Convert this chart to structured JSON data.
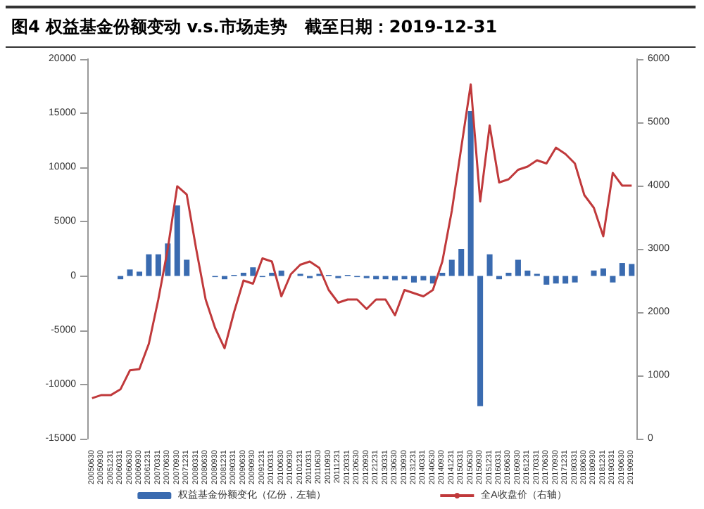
{
  "chart_data": {
    "type": "bar",
    "title": "图4 权益基金份额变动 v.s.市场走势   截至日期：2019-12-31",
    "categories": [
      "20050630",
      "20050930",
      "20051231",
      "20060331",
      "20060630",
      "20060930",
      "20061231",
      "20070331",
      "20070630",
      "20070930",
      "20071231",
      "20080331",
      "20080630",
      "20080930",
      "20081231",
      "20090331",
      "20090630",
      "20090930",
      "20091231",
      "20100331",
      "20100630",
      "20100930",
      "20101231",
      "20110331",
      "20110630",
      "20110930",
      "20111231",
      "20120331",
      "20120630",
      "20120930",
      "20121231",
      "20130331",
      "20130630",
      "20130930",
      "20131231",
      "20140331",
      "20140630",
      "20140930",
      "20141231",
      "20150331",
      "20150630",
      "20150930",
      "20151231",
      "20160331",
      "20160630",
      "20160930",
      "20161231",
      "20170331",
      "20170630",
      "20170930",
      "20171231",
      "20180331",
      "20180630",
      "20180930",
      "20181231",
      "20190331",
      "20190630",
      "20190930"
    ],
    "series": [
      {
        "name": "权益基金份额变化（亿份，左轴）",
        "color": "#3a6bb0",
        "values": [
          0,
          0,
          0,
          -300,
          600,
          400,
          2000,
          2000,
          3000,
          6500,
          1500,
          0,
          0,
          -100,
          -300,
          100,
          300,
          800,
          -100,
          300,
          500,
          null,
          200,
          -200,
          200,
          100,
          -200,
          100,
          -100,
          -200,
          -300,
          -300,
          -400,
          -300,
          -600,
          -400,
          -700,
          300,
          1500,
          2500,
          15200,
          -12000,
          2000,
          -300,
          300,
          1500,
          500,
          200,
          -800,
          -700,
          -700,
          -600,
          0,
          500,
          700,
          -600,
          1200,
          1100
        ]
      },
      {
        "name": "全A收盘价（右轴）",
        "type": "line",
        "axis": "y2",
        "color": "#c0393b",
        "values": [
          640,
          690,
          690,
          780,
          1080,
          1100,
          1500,
          2200,
          3000,
          3990,
          3860,
          3000,
          2200,
          1750,
          1430,
          2000,
          2500,
          2450,
          2850,
          2800,
          2250,
          2600,
          2750,
          2800,
          2700,
          2350,
          2150,
          2200,
          2200,
          2050,
          2200,
          2200,
          1950,
          2350,
          2300,
          2250,
          2350,
          2800,
          3600,
          4600,
          5600,
          3750,
          4950,
          4050,
          4100,
          4250,
          4300,
          4400,
          4350,
          4600,
          4500,
          4350,
          3850,
          3650,
          3200,
          4200,
          4000,
          4000
        ]
      }
    ],
    "ylim": [
      -15000,
      20000
    ],
    "yticks": [
      -15000,
      -10000,
      -5000,
      0,
      5000,
      10000,
      15000,
      20000
    ],
    "y2lim": [
      0,
      6000
    ],
    "y2ticks": [
      0,
      1000,
      2000,
      3000,
      4000,
      5000,
      6000
    ],
    "legend": "bottom",
    "grid": false,
    "marker": "none",
    "line_style": "solid"
  }
}
